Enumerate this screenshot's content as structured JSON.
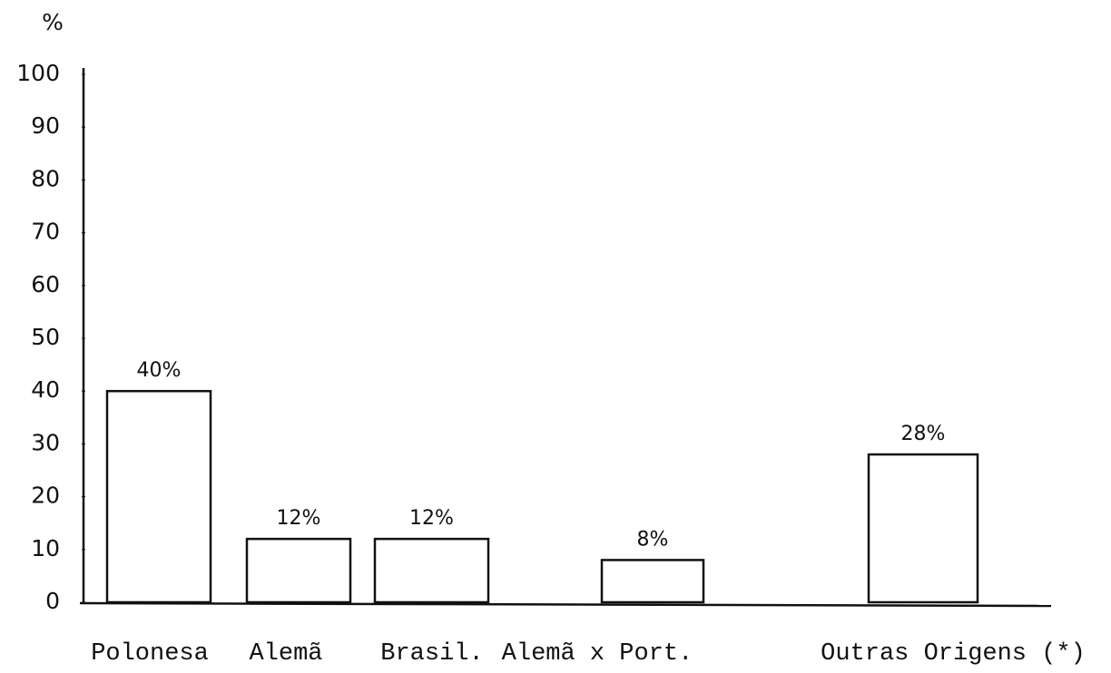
{
  "chart_data": {
    "type": "bar",
    "y_label": "%",
    "categories": [
      "Polonesa",
      "Alemã",
      "Brasil.",
      "Alemã x Port.",
      "Outras Origens (*)"
    ],
    "values": [
      40,
      12,
      12,
      8,
      28
    ],
    "value_labels": [
      "40%",
      "12%",
      "12%",
      "8%",
      "28%"
    ],
    "color": "#ffffff",
    "ylim": [
      0,
      100
    ],
    "yticks": [
      0,
      10,
      20,
      30,
      40,
      50,
      60,
      70,
      80,
      90,
      100
    ],
    "grid": false
  }
}
